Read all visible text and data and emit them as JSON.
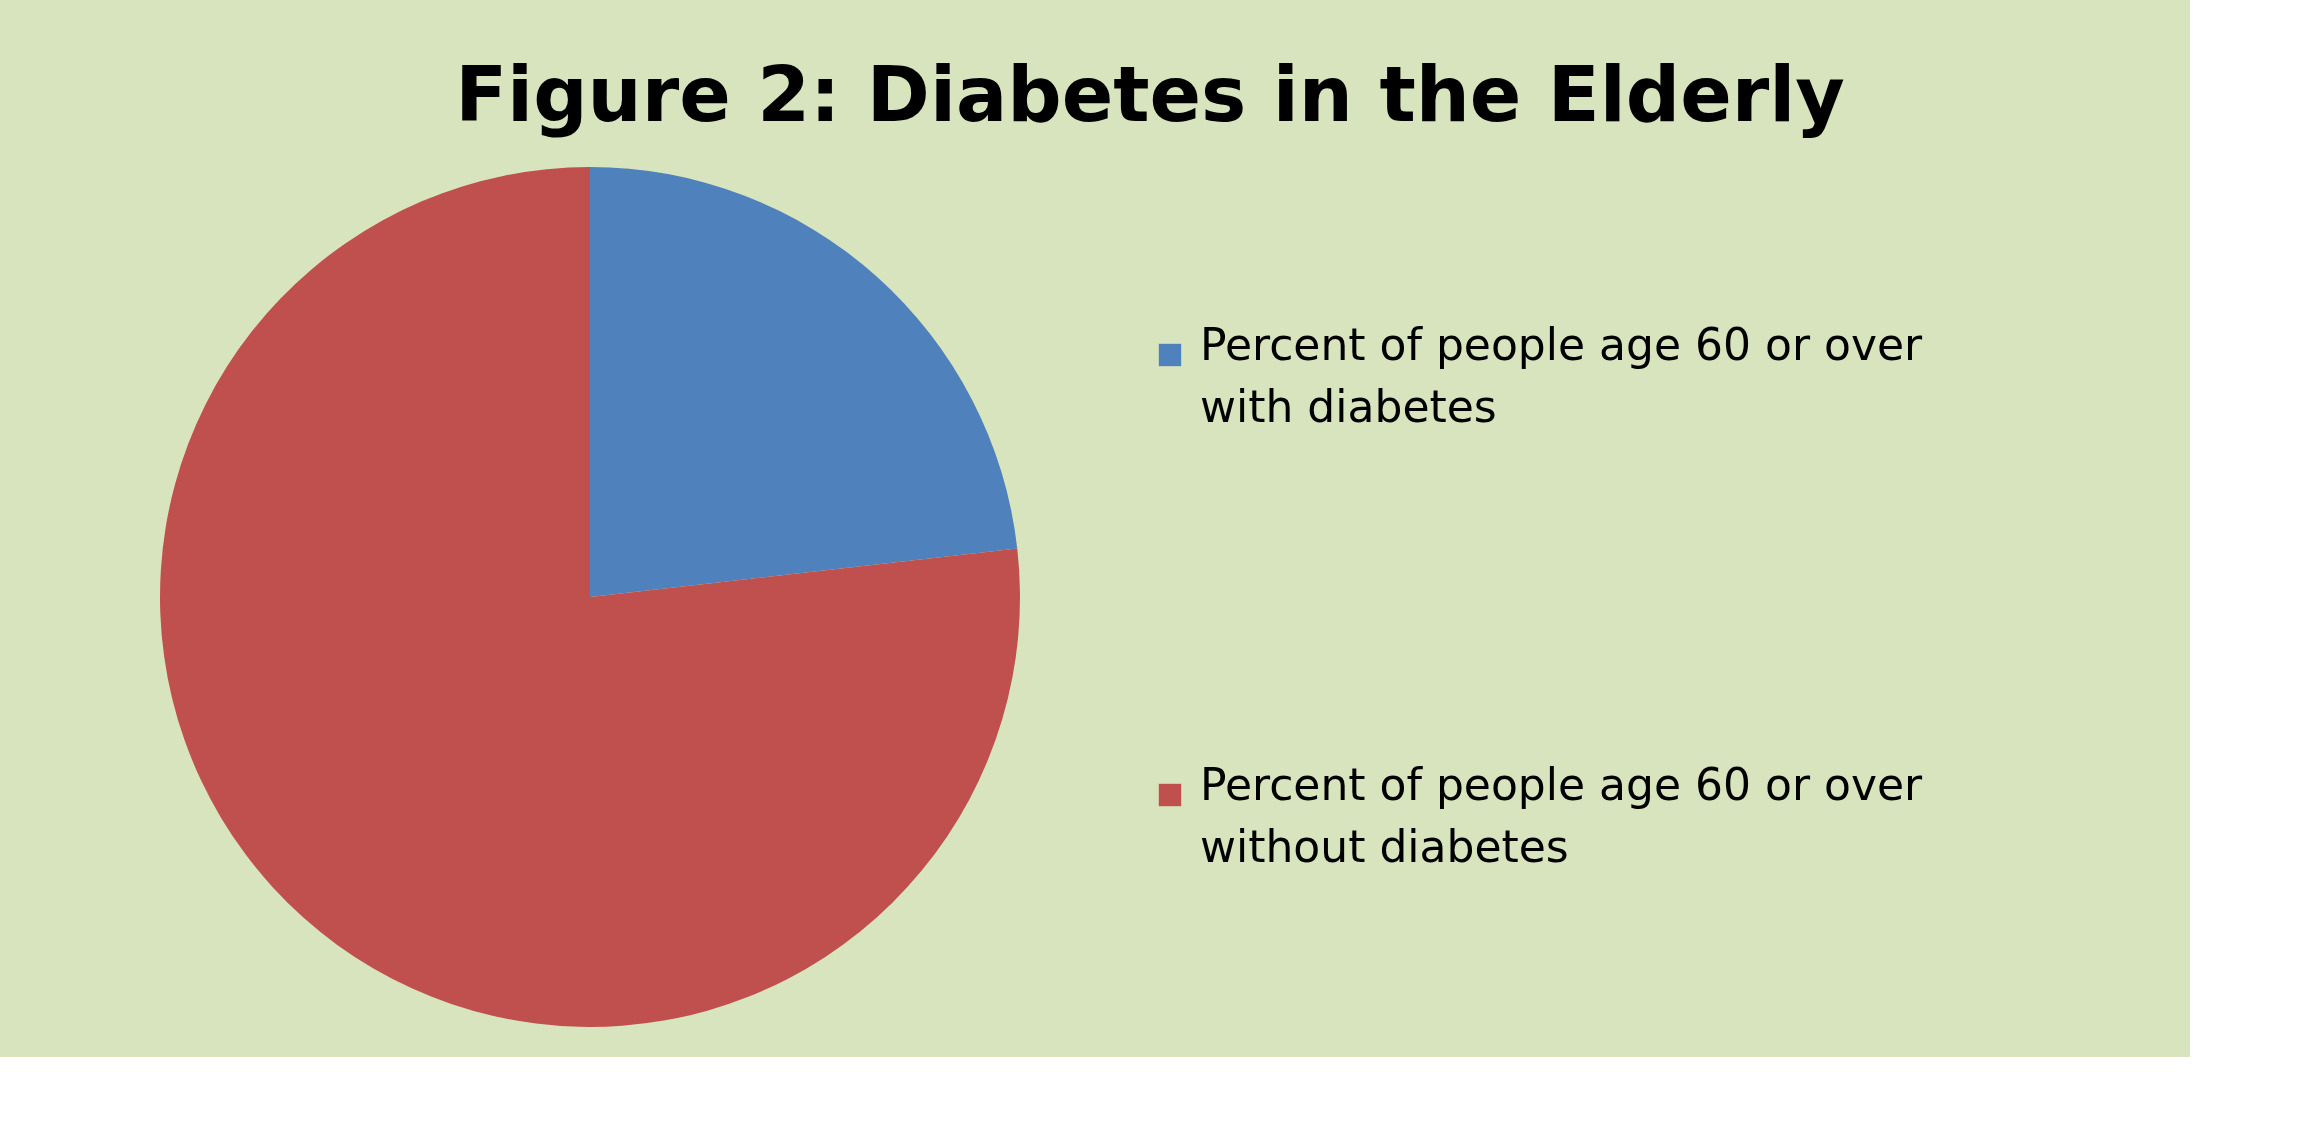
{
  "chart_data": {
    "type": "pie",
    "title": "Figure 2: Diabetes in the Elderly",
    "categories": [
      "Percent of people age 60 or over with diabetes",
      "Percent of people age 60 or over without diabetes"
    ],
    "values": [
      23.2,
      76.8
    ],
    "colors": [
      "#4f81bd",
      "#c0504d"
    ],
    "legend": "right"
  }
}
